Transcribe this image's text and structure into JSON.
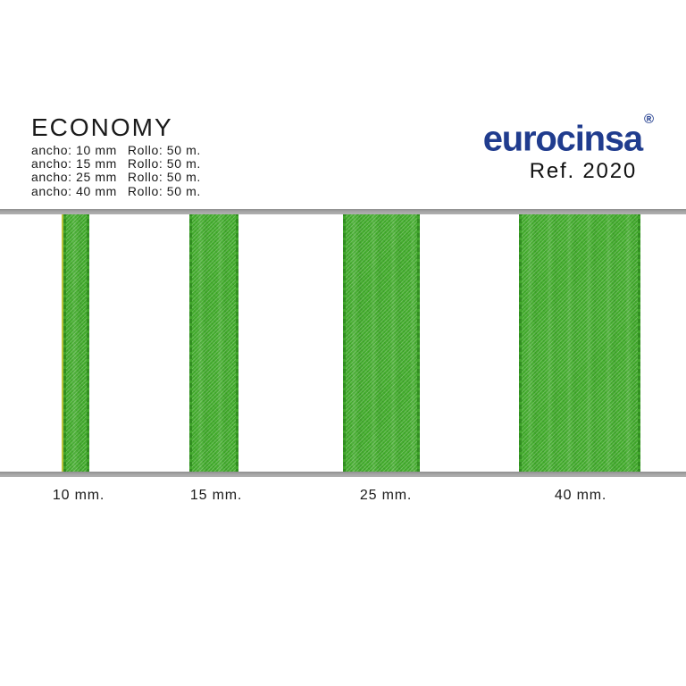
{
  "header": {
    "title": "ECONOMY",
    "specs": [
      {
        "ancho": "ancho: 10 mm",
        "rollo": "Rollo: 50 m."
      },
      {
        "ancho": "ancho: 15 mm",
        "rollo": "Rollo: 50 m."
      },
      {
        "ancho": "ancho: 25 mm",
        "rollo": "Rollo: 50 m."
      },
      {
        "ancho": "ancho: 40 mm",
        "rollo": "Rollo: 50 m."
      }
    ]
  },
  "brand": {
    "logo_text": "eurocinsa",
    "registered_mark": "®",
    "reference": "Ref. 2020",
    "logo_color": "#203c8e"
  },
  "display": {
    "rail_color": "#a2a2a2",
    "ribbon_color": "#45ad2f",
    "ribbon_edge_color": "#2e8a1e",
    "ribbons": [
      {
        "label": "10 mm.",
        "width_mm": 10
      },
      {
        "label": "15 mm.",
        "width_mm": 15
      },
      {
        "label": "25 mm.",
        "width_mm": 25
      },
      {
        "label": "40 mm.",
        "width_mm": 40
      }
    ]
  }
}
